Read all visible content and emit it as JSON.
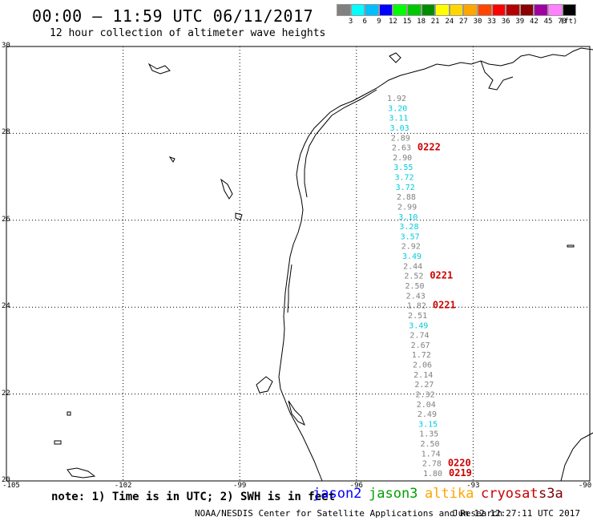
{
  "header": {
    "title": "00:00 — 11:59 UTC 06/11/2017",
    "subtitle": "12 hour collection of altimeter wave heights"
  },
  "legend": {
    "unit": "(ft)",
    "labels": [
      "3",
      "6",
      "9",
      "12",
      "15",
      "18",
      "21",
      "24",
      "27",
      "30",
      "33",
      "36",
      "39",
      "42",
      "45",
      "70"
    ],
    "colors": [
      "#808080",
      "#00ffff",
      "#00bfff",
      "#0000ff",
      "#00ff00",
      "#00c800",
      "#008c00",
      "#ffff00",
      "#ffd700",
      "#ffa500",
      "#ff4500",
      "#ff0000",
      "#b40000",
      "#8b0000",
      "#a000a0",
      "#ff80ff",
      "#000000"
    ]
  },
  "axes": {
    "lat_labels": [
      "30",
      "28",
      "26",
      "24",
      "22",
      "20"
    ],
    "lon_labels": [
      "-105",
      "-102",
      "-99",
      "-96",
      "-93",
      "-90"
    ]
  },
  "tracks": [
    {
      "time": "0222",
      "time_color": "#cc0000",
      "points": [
        {
          "v": "1.92",
          "c": "#808080"
        },
        {
          "v": "3.20",
          "c": "#00ccdd"
        },
        {
          "v": "3.11",
          "c": "#00ccdd"
        },
        {
          "v": "3.03",
          "c": "#00ccdd"
        },
        {
          "v": "2.89",
          "c": "#808080"
        },
        {
          "v": "2.63",
          "c": "#808080"
        },
        {
          "v": "2.90",
          "c": "#808080"
        },
        {
          "v": "3.55",
          "c": "#00ccdd"
        },
        {
          "v": "3.72",
          "c": "#00ccdd"
        },
        {
          "v": "3.72",
          "c": "#00ccdd"
        },
        {
          "v": "2.88",
          "c": "#808080"
        },
        {
          "v": "2.99",
          "c": "#808080"
        },
        {
          "v": "3.10",
          "c": "#00ccdd"
        },
        {
          "v": "3.28",
          "c": "#00ccdd"
        },
        {
          "v": "3.57",
          "c": "#00ccdd"
        },
        {
          "v": "2.92",
          "c": "#808080"
        },
        {
          "v": "3.49",
          "c": "#00ccdd"
        },
        {
          "v": "2.44",
          "c": "#808080"
        },
        {
          "v": "2.52",
          "c": "#808080"
        },
        {
          "v": "2.50",
          "c": "#808080"
        },
        {
          "v": "2.43",
          "c": "#808080"
        },
        {
          "v": "1.82",
          "c": "#808080"
        },
        {
          "v": "2.51",
          "c": "#808080"
        },
        {
          "v": "3.49",
          "c": "#00ccdd"
        },
        {
          "v": "2.74",
          "c": "#808080"
        },
        {
          "v": "2.67",
          "c": "#808080"
        },
        {
          "v": "1.72",
          "c": "#808080"
        },
        {
          "v": "2.06",
          "c": "#808080"
        },
        {
          "v": "2.14",
          "c": "#808080"
        },
        {
          "v": "2.27",
          "c": "#808080"
        },
        {
          "v": "2.32",
          "c": "#808080"
        },
        {
          "v": "2.04",
          "c": "#808080"
        },
        {
          "v": "2.49",
          "c": "#808080"
        },
        {
          "v": "3.15",
          "c": "#00ccdd"
        },
        {
          "v": "1.35",
          "c": "#808080"
        },
        {
          "v": "2.50",
          "c": "#808080"
        },
        {
          "v": "1.74",
          "c": "#808080"
        },
        {
          "v": "2.78",
          "c": "#808080"
        },
        {
          "v": "1.80",
          "c": "#808080"
        }
      ]
    }
  ],
  "time_marks": [
    {
      "label": "0222",
      "after_index": 5
    },
    {
      "label": "0221",
      "after_index": 18
    },
    {
      "label": "0221",
      "after_index": 21
    },
    {
      "label": "0220",
      "after_index": 37
    },
    {
      "label": "0219",
      "after_index": 38
    }
  ],
  "footer": {
    "note": "note: 1) Time is in UTC; 2) SWH is in feet",
    "satellites": [
      {
        "name": "jason2",
        "color": "#0000ff"
      },
      {
        "name": "jason3",
        "color": "#00a000"
      },
      {
        "name": "altika",
        "color": "#ffa500"
      },
      {
        "name": "cryosat",
        "color": "#cc0000"
      },
      {
        "name": "s3a",
        "color": "#800000"
      }
    ],
    "credit": "NOAA/NESDIS Center for Satellite Applications and Research",
    "stamp": "Jun 12 12:27:11 UTC 2017"
  }
}
